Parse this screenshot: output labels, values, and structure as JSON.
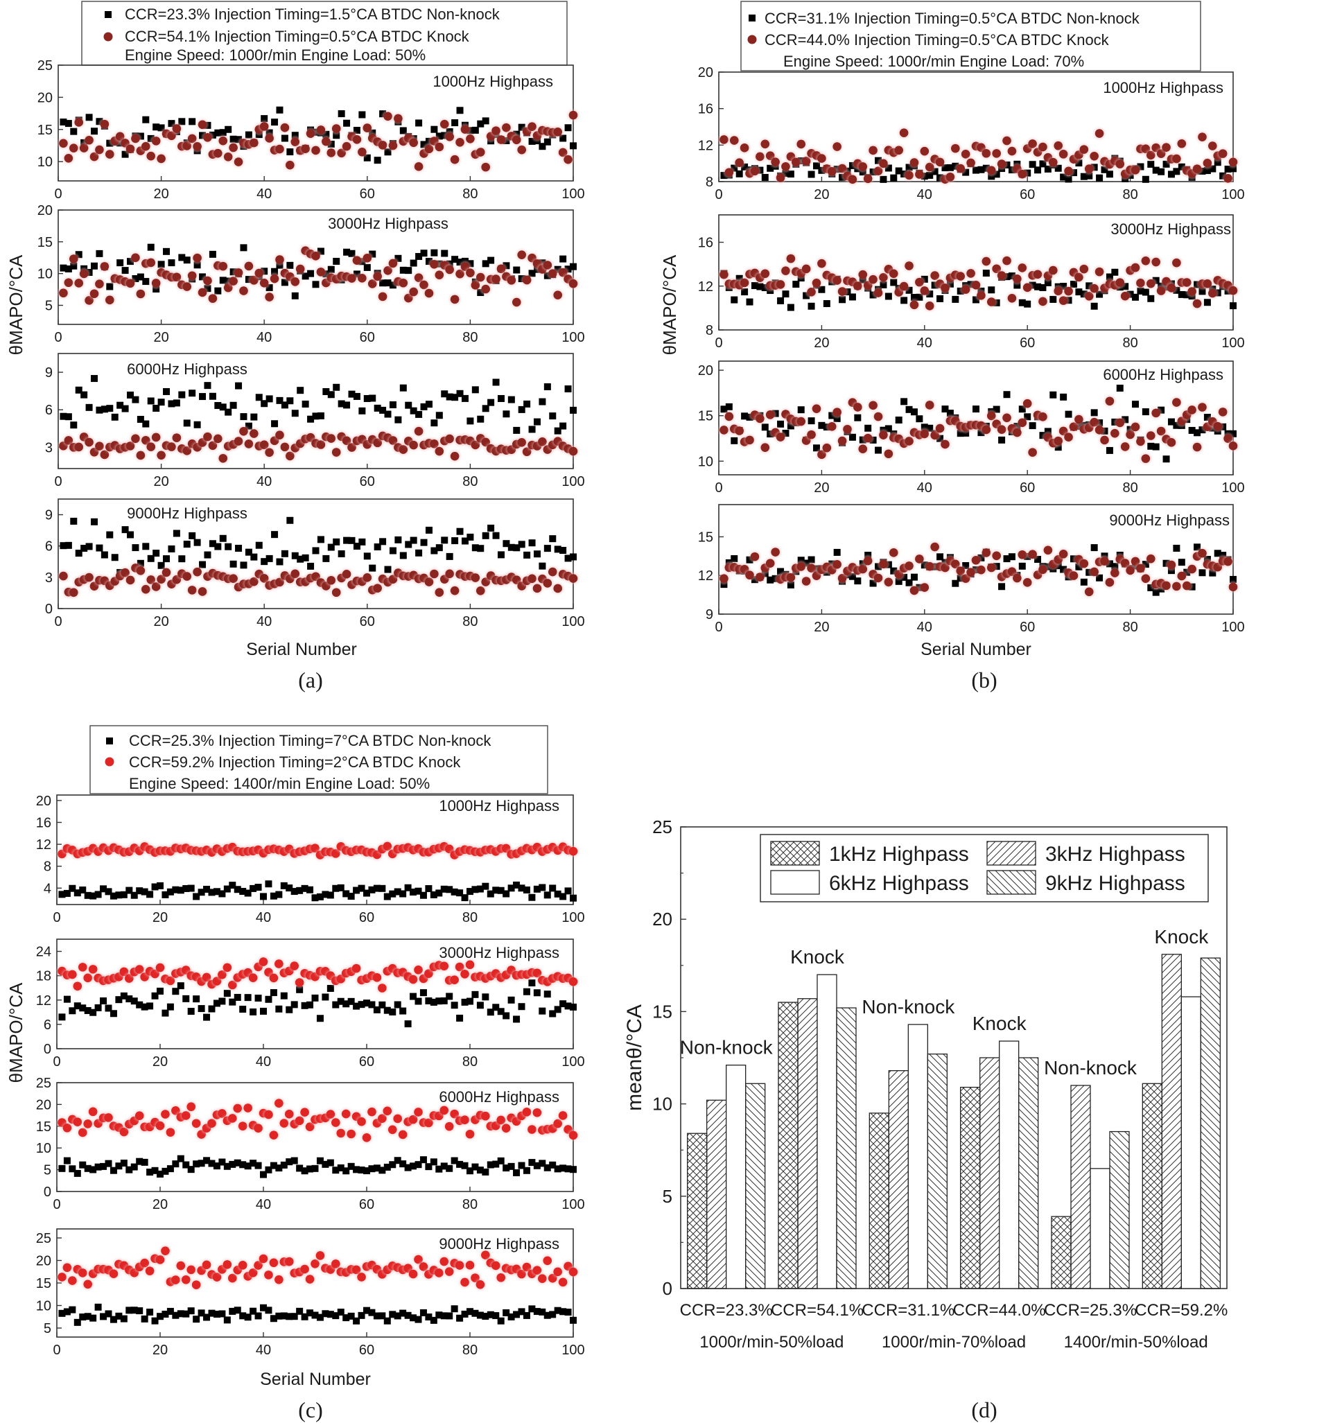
{
  "captions": {
    "a": "(a)",
    "b": "(b)",
    "c": "(c)",
    "d": "(d)"
  },
  "panels": {
    "a": {
      "legend": [
        {
          "text": "CCR=23.3% Injection Timing=1.5°CA BTDC Non-knock",
          "marker": "square",
          "color": "#000000"
        },
        {
          "text": "CCR=54.1% Injection Timing=0.5°CA BTDC Knock",
          "marker": "circle",
          "color": "#8b2520"
        },
        {
          "text": "Engine Speed: 1000r/min Engine Load: 50%"
        }
      ],
      "ylabel": "θMAPO/°CA",
      "xlabel": "Serial Number",
      "xticks": [
        "0",
        "20",
        "40",
        "60",
        "80",
        "100"
      ]
    },
    "b": {
      "legend": [
        {
          "text": "CCR=31.1% Injection Timing=0.5°CA BTDC Non-knock",
          "marker": "square",
          "color": "#000000"
        },
        {
          "text": "CCR=44.0% Injection Timing=0.5°CA BTDC Knock",
          "marker": "circle",
          "color": "#8b2520"
        },
        {
          "text": "Engine Speed: 1000r/min Engine Load: 70%"
        }
      ],
      "ylabel": "θMAPO/°CA",
      "xlabel": "Serial Number",
      "xticks": [
        "0",
        "20",
        "40",
        "60",
        "80",
        "100"
      ]
    },
    "c": {
      "legend": [
        {
          "text": "CCR=25.3% Injection Timing=7°CA BTDC Non-knock",
          "marker": "square",
          "color": "#000000"
        },
        {
          "text": "CCR=59.2% Injection Timing=2°CA BTDC Knock",
          "marker": "circle",
          "color": "#e02525"
        },
        {
          "text": "Engine Speed: 1400r/min Engine Load: 50%"
        }
      ],
      "ylabel": "θMAPO/°CA",
      "xlabel": "Serial Number",
      "xticks": [
        "0",
        "20",
        "40",
        "60",
        "80",
        "100"
      ]
    }
  },
  "chart_data": [
    {
      "id": "a1",
      "type": "scatter",
      "panel": "a",
      "title": "1000Hz Highpass",
      "ylim": [
        7,
        25
      ],
      "yticks": [
        10,
        15,
        20,
        25
      ],
      "xlim": [
        0,
        100
      ],
      "series": [
        {
          "name": "CCR=23.3% Injection Timing=1.5°CA BTDC Non-knock",
          "marker": "square",
          "color": "#000000",
          "mean": 14.2,
          "spread": 2.6
        },
        {
          "name": "CCR=54.1% Injection Timing=0.5°CA BTDC Knock",
          "marker": "circle",
          "color": "#8b2520",
          "mean": 13.2,
          "spread": 3.0
        }
      ]
    },
    {
      "id": "a2",
      "type": "scatter",
      "panel": "a",
      "title": "3000Hz Highpass",
      "ylim": [
        2,
        20
      ],
      "yticks": [
        5,
        10,
        15,
        20
      ],
      "xlim": [
        0,
        100
      ],
      "series": [
        {
          "name": "CCR=23.3% Injection Timing=1.5°CA BTDC Non-knock",
          "marker": "square",
          "color": "#000000",
          "mean": 10.5,
          "spread": 2.8
        },
        {
          "name": "CCR=54.1% Injection Timing=0.5°CA BTDC Knock",
          "marker": "circle",
          "color": "#8b2520",
          "mean": 9.3,
          "spread": 3.2
        }
      ]
    },
    {
      "id": "a3",
      "type": "scatter",
      "panel": "a",
      "title": "6000Hz Highpass",
      "ylim": [
        1.3,
        10.5
      ],
      "yticks": [
        3,
        6,
        9
      ],
      "xlim": [
        0,
        100
      ],
      "series": [
        {
          "name": "CCR=23.3% Injection Timing=1.5°CA BTDC Non-knock",
          "marker": "square",
          "color": "#000000",
          "mean": 6.2,
          "spread": 1.5
        },
        {
          "name": "CCR=54.1% Injection Timing=0.5°CA BTDC Knock",
          "marker": "circle",
          "color": "#8b2520",
          "mean": 3.2,
          "spread": 0.8
        }
      ]
    },
    {
      "id": "a4",
      "type": "scatter",
      "panel": "a",
      "title": "9000Hz Highpass",
      "ylim": [
        0,
        10.5
      ],
      "yticks": [
        0,
        3,
        6,
        9
      ],
      "xlim": [
        0,
        100
      ],
      "series": [
        {
          "name": "CCR=23.3% Injection Timing=1.5°CA BTDC Non-knock",
          "marker": "square",
          "color": "#000000",
          "mean": 5.8,
          "spread": 1.6
        },
        {
          "name": "CCR=54.1% Injection Timing=0.5°CA BTDC Knock",
          "marker": "circle",
          "color": "#8b2520",
          "mean": 2.7,
          "spread": 0.8
        }
      ]
    },
    {
      "id": "b1",
      "type": "scatter",
      "panel": "b",
      "title": "1000Hz Highpass",
      "ylim": [
        8,
        20
      ],
      "yticks": [
        8,
        12,
        16,
        20
      ],
      "xlim": [
        0,
        100
      ],
      "series": [
        {
          "name": "CCR=31.1% Injection Timing=0.5°CA BTDC Non-knock",
          "marker": "square",
          "color": "#000000",
          "mean": 9.1,
          "spread": 0.9
        },
        {
          "name": "CCR=44.0% Injection Timing=0.5°CA BTDC Knock",
          "marker": "circle",
          "color": "#8b2520",
          "mean": 10.4,
          "spread": 1.9
        }
      ]
    },
    {
      "id": "b2",
      "type": "scatter",
      "panel": "b",
      "title": "3000Hz Highpass",
      "ylim": [
        8,
        18.5
      ],
      "yticks": [
        8,
        12,
        16
      ],
      "xlim": [
        0,
        100
      ],
      "series": [
        {
          "name": "CCR=31.1% Injection Timing=0.5°CA BTDC Non-knock",
          "marker": "square",
          "color": "#000000",
          "mean": 11.6,
          "spread": 1.1
        },
        {
          "name": "CCR=44.0% Injection Timing=0.5°CA BTDC Knock",
          "marker": "circle",
          "color": "#8b2520",
          "mean": 12.3,
          "spread": 1.4
        }
      ]
    },
    {
      "id": "b3",
      "type": "scatter",
      "panel": "b",
      "title": "6000Hz Highpass",
      "ylim": [
        8.5,
        21
      ],
      "yticks": [
        10,
        15,
        20
      ],
      "xlim": [
        0,
        100
      ],
      "series": [
        {
          "name": "CCR=31.1% Injection Timing=0.5°CA BTDC Non-knock",
          "marker": "square",
          "color": "#000000",
          "mean": 13.9,
          "spread": 2.3
        },
        {
          "name": "CCR=44.0% Injection Timing=0.5°CA BTDC Knock",
          "marker": "circle",
          "color": "#8b2520",
          "mean": 13.6,
          "spread": 2.2
        }
      ]
    },
    {
      "id": "b4",
      "type": "scatter",
      "panel": "b",
      "title": "9000Hz Highpass",
      "ylim": [
        9,
        17.5
      ],
      "yticks": [
        9,
        12,
        15
      ],
      "xlim": [
        0,
        100
      ],
      "series": [
        {
          "name": "CCR=31.1% Injection Timing=0.5°CA BTDC Non-knock",
          "marker": "square",
          "color": "#000000",
          "mean": 12.6,
          "spread": 1.2
        },
        {
          "name": "CCR=44.0% Injection Timing=0.5°CA BTDC Knock",
          "marker": "circle",
          "color": "#8b2520",
          "mean": 12.6,
          "spread": 1.2
        }
      ]
    },
    {
      "id": "c1",
      "type": "scatter",
      "panel": "c",
      "title": "1000Hz Highpass",
      "ylim": [
        1,
        21
      ],
      "yticks": [
        4,
        8,
        12,
        16,
        20
      ],
      "xlim": [
        0,
        100
      ],
      "series": [
        {
          "name": "CCR=25.3% Injection Timing=7°CA BTDC Non-knock",
          "marker": "square",
          "color": "#000000",
          "mean": 3.3,
          "spread": 1.0
        },
        {
          "name": "CCR=59.2% Injection Timing=2°CA BTDC Knock",
          "marker": "circle",
          "color": "#e02525",
          "mean": 10.9,
          "spread": 0.5
        }
      ]
    },
    {
      "id": "c2",
      "type": "scatter",
      "panel": "c",
      "title": "3000Hz Highpass",
      "ylim": [
        0,
        27
      ],
      "yticks": [
        0,
        6,
        12,
        18,
        24
      ],
      "xlim": [
        0,
        100
      ],
      "series": [
        {
          "name": "CCR=25.3% Injection Timing=7°CA BTDC Non-knock",
          "marker": "square",
          "color": "#000000",
          "mean": 11.0,
          "spread": 3.0
        },
        {
          "name": "CCR=59.2% Injection Timing=2°CA BTDC Knock",
          "marker": "circle",
          "color": "#e02525",
          "mean": 18.0,
          "spread": 2.0
        }
      ]
    },
    {
      "id": "c3",
      "type": "scatter",
      "panel": "c",
      "title": "6000Hz Highpass",
      "ylim": [
        0,
        25
      ],
      "yticks": [
        0,
        5,
        10,
        15,
        20,
        25
      ],
      "xlim": [
        0,
        100
      ],
      "series": [
        {
          "name": "CCR=25.3% Injection Timing=7°CA BTDC Non-knock",
          "marker": "square",
          "color": "#000000",
          "mean": 5.8,
          "spread": 1.2
        },
        {
          "name": "CCR=59.2% Injection Timing=2°CA BTDC Knock",
          "marker": "circle",
          "color": "#e02525",
          "mean": 16.0,
          "spread": 2.8
        }
      ]
    },
    {
      "id": "c4",
      "type": "scatter",
      "panel": "c",
      "title": "9000Hz Highpass",
      "ylim": [
        3,
        27
      ],
      "yticks": [
        5,
        10,
        15,
        20,
        25
      ],
      "xlim": [
        0,
        100
      ],
      "series": [
        {
          "name": "CCR=25.3% Injection Timing=7°CA BTDC Non-knock",
          "marker": "square",
          "color": "#000000",
          "mean": 8.0,
          "spread": 1.3
        },
        {
          "name": "CCR=59.2% Injection Timing=2°CA BTDC Knock",
          "marker": "circle",
          "color": "#e02525",
          "mean": 18.0,
          "spread": 2.5
        }
      ]
    },
    {
      "id": "d",
      "type": "bar",
      "panel": "d",
      "ylabel": "meanθ/°CA",
      "ylim": [
        0,
        25
      ],
      "yticks": [
        0,
        5,
        10,
        15,
        20,
        25
      ],
      "categories": [
        "CCR=23.3%",
        "CCR=54.1%",
        "CCR=31.1%",
        "CCR=44.0%",
        "CCR=25.3%",
        "CCR=59.2%"
      ],
      "group_labels": [
        "1000r/min-50%load",
        "1000r/min-70%load",
        "1400r/min-50%load"
      ],
      "annotations": [
        "Non-knock",
        "Knock",
        "Non-knock",
        "Knock",
        "Non-knock",
        "Knock"
      ],
      "series": [
        {
          "name": "1kHz Highpass",
          "pattern": "crosshatch",
          "values": [
            8.4,
            15.5,
            9.5,
            10.9,
            3.9,
            11.1
          ]
        },
        {
          "name": "3kHz Highpass",
          "pattern": "diag-forward",
          "values": [
            10.2,
            15.7,
            11.8,
            12.5,
            11.0,
            18.1
          ]
        },
        {
          "name": "6kHz Highpass",
          "pattern": "blank",
          "values": [
            12.1,
            17.0,
            14.3,
            13.4,
            6.5,
            15.8
          ]
        },
        {
          "name": "9kHz Highpass",
          "pattern": "diag-back",
          "values": [
            11.1,
            15.2,
            12.7,
            12.5,
            8.5,
            17.9
          ]
        }
      ]
    }
  ]
}
